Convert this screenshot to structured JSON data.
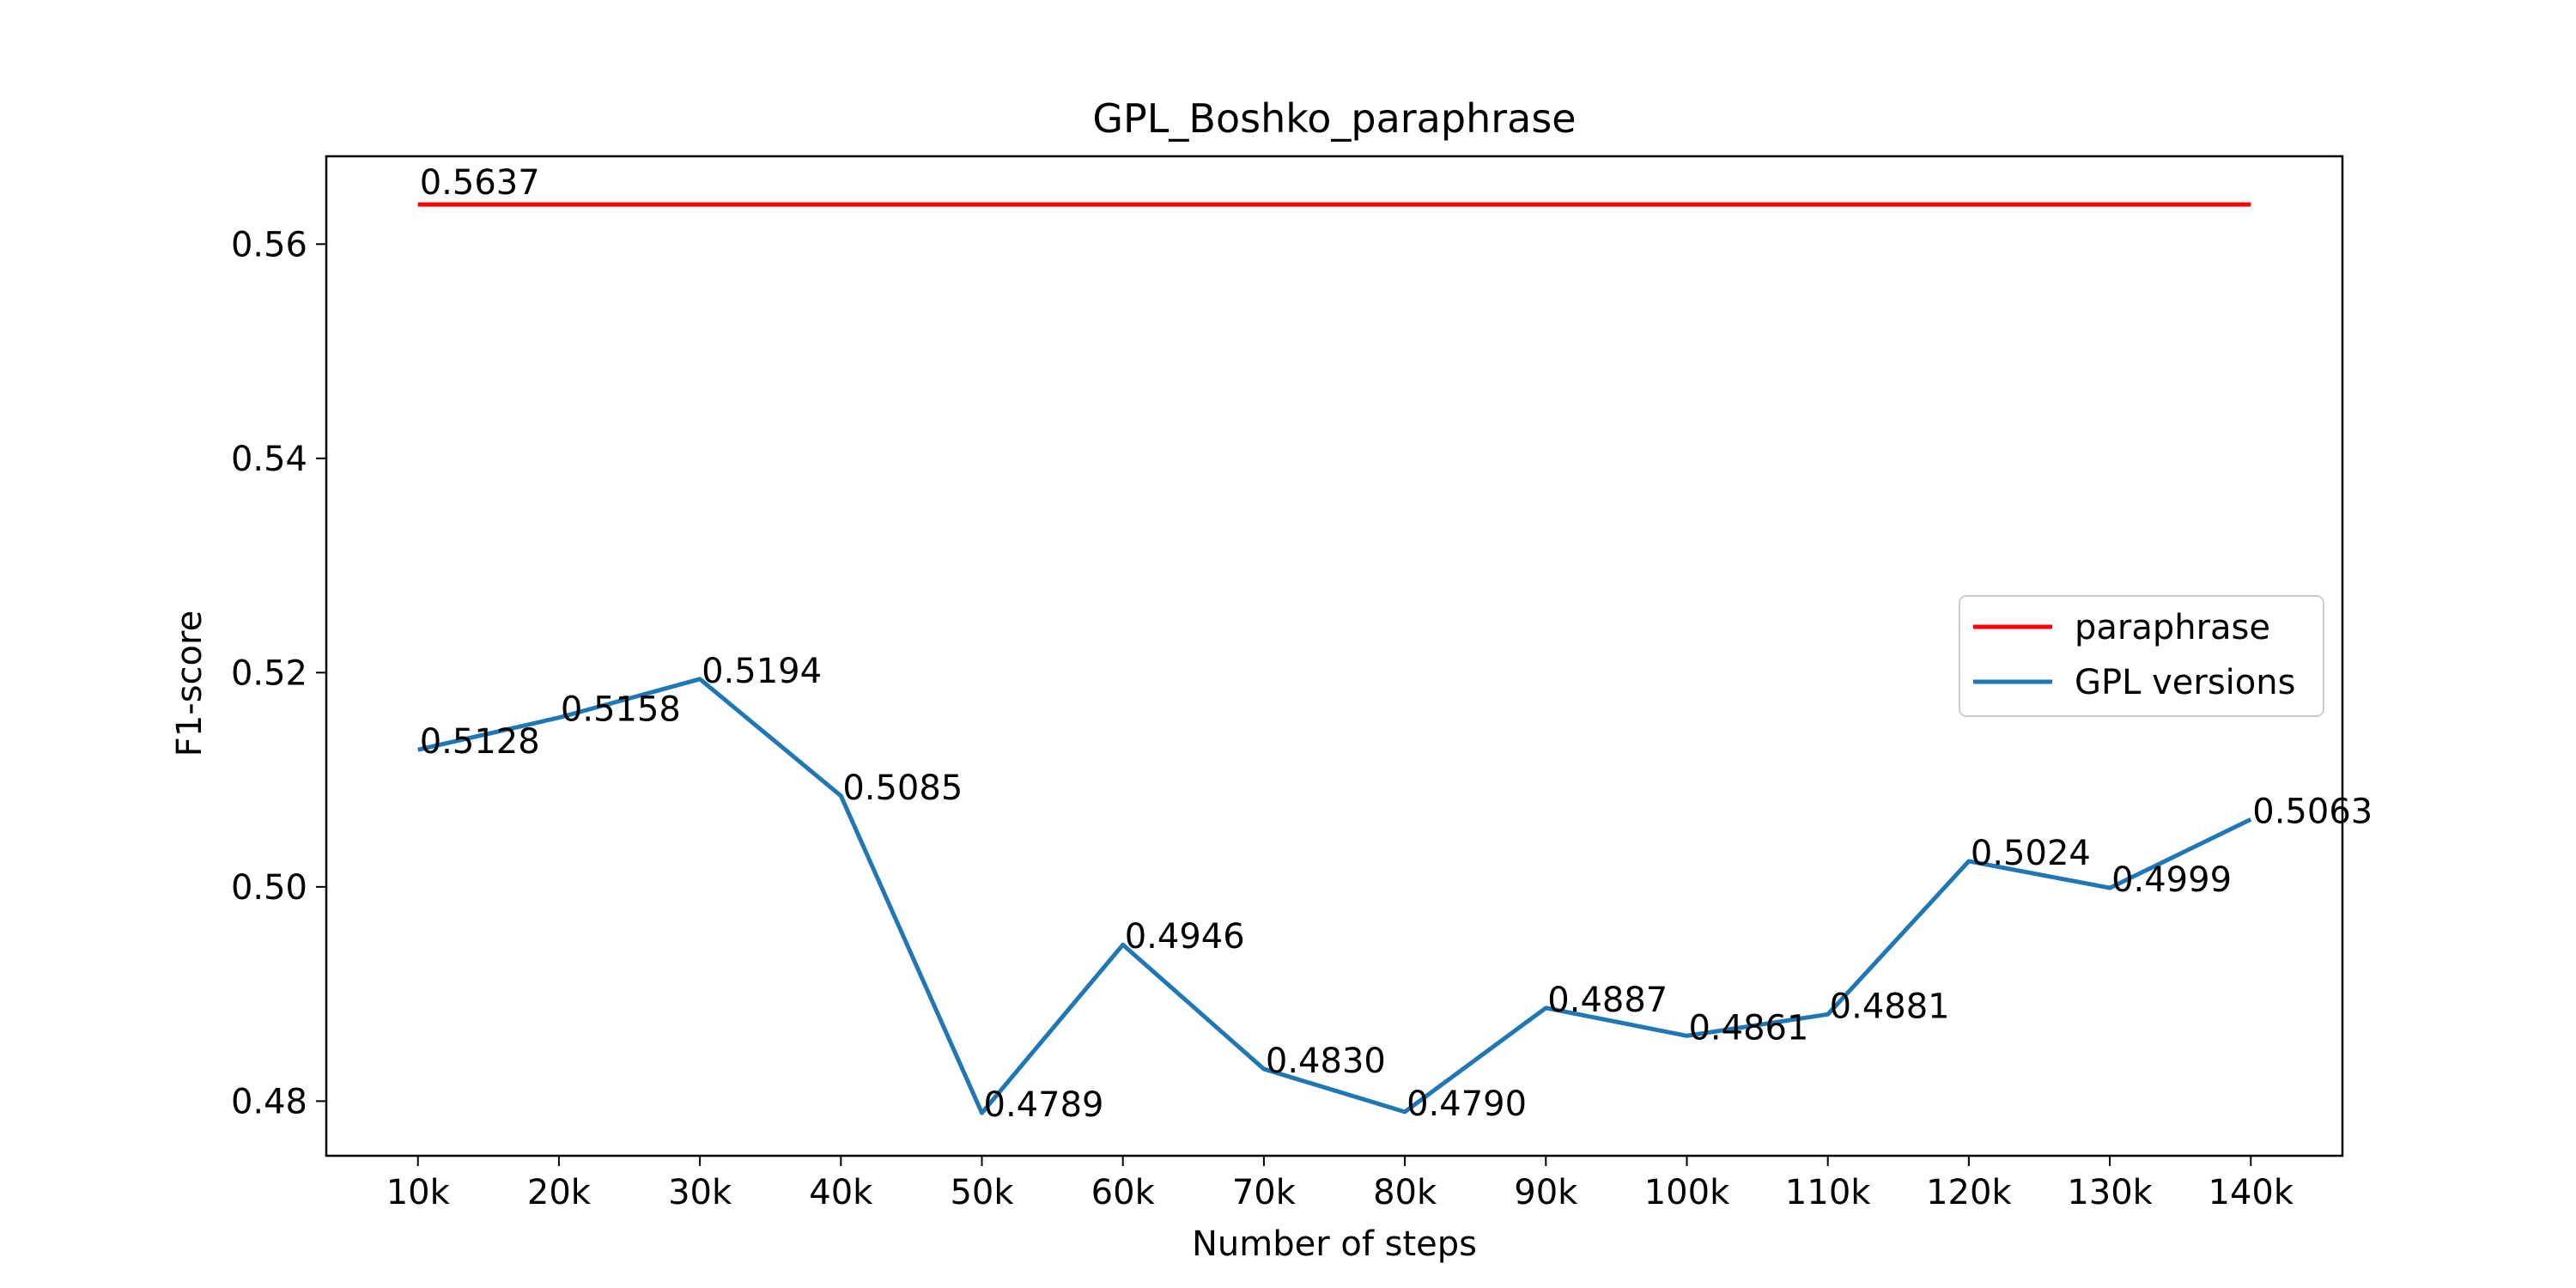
{
  "chart_data": {
    "type": "line",
    "title": "GPL_Boshko_paraphrase",
    "xlabel": "Number of steps",
    "ylabel": "F1-score",
    "categories": [
      "10k",
      "20k",
      "30k",
      "40k",
      "50k",
      "60k",
      "70k",
      "80k",
      "90k",
      "100k",
      "110k",
      "120k",
      "130k",
      "140k"
    ],
    "ylim": [
      0.4749,
      0.5682
    ],
    "yticks": [
      0.48,
      0.5,
      0.52,
      0.54,
      0.56
    ],
    "ytick_labels": [
      "0.48",
      "0.50",
      "0.52",
      "0.54",
      "0.56"
    ],
    "grid": false,
    "legend_position": "center-right",
    "series": [
      {
        "name": "paraphrase",
        "color": "#ff0000",
        "style": "constant",
        "values": [
          0.5637,
          0.5637,
          0.5637,
          0.5637,
          0.5637,
          0.5637,
          0.5637,
          0.5637,
          0.5637,
          0.5637,
          0.5637,
          0.5637,
          0.5637,
          0.5637
        ],
        "label": "0.5637"
      },
      {
        "name": "GPL versions",
        "color": "#1f77b4",
        "values": [
          0.5128,
          0.5158,
          0.5194,
          0.5085,
          0.4789,
          0.4946,
          0.483,
          0.479,
          0.4887,
          0.4861,
          0.4881,
          0.5024,
          0.4999,
          0.5063
        ],
        "labels": [
          "0.5128",
          "0.5158",
          "0.5194",
          "0.5085",
          "0.4789",
          "0.4946",
          "0.4830",
          "0.4790",
          "0.4887",
          "0.4861",
          "0.4881",
          "0.5024",
          "0.4999",
          "0.5063"
        ]
      }
    ]
  }
}
